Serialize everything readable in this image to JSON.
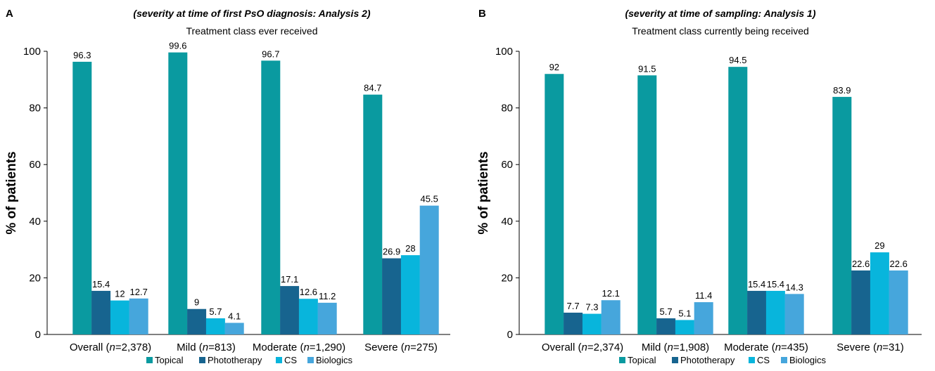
{
  "colors": {
    "Topical": "#0a9aa0",
    "Phototherapy": "#17648f",
    "CS": "#08b5dc",
    "Biologics": "#46a6dc"
  },
  "chart_data": [
    {
      "type": "bar",
      "panel": "A",
      "title": "(severity at time of first PsO diagnosis: Analysis 2)",
      "subtitle": "Treatment class ever received",
      "ylabel": "% of patients",
      "xlabel": "",
      "ylim": [
        0,
        100
      ],
      "yticks": [
        0,
        20,
        40,
        60,
        80,
        100
      ],
      "grid": false,
      "legend_position": "bottom",
      "categories": [
        {
          "pre": "Overall (",
          "n": "n",
          "post": "=2,378)"
        },
        {
          "pre": "Mild (",
          "n": "n",
          "post": "=813)"
        },
        {
          "pre": "Moderate (",
          "n": "n",
          "post": "=1,290)"
        },
        {
          "pre": "Severe (",
          "n": "n",
          "post": "=275)"
        }
      ],
      "series": [
        {
          "name": "Topical",
          "values": [
            96.3,
            99.6,
            96.7,
            84.7
          ]
        },
        {
          "name": "Phototherapy",
          "values": [
            15.4,
            9,
            17.1,
            26.9
          ]
        },
        {
          "name": "CS",
          "values": [
            12,
            5.7,
            12.6,
            28
          ]
        },
        {
          "name": "Biologics",
          "values": [
            12.7,
            4.1,
            11.2,
            45.5
          ]
        }
      ]
    },
    {
      "type": "bar",
      "panel": "B",
      "title": "(severity at time of sampling: Analysis 1)",
      "subtitle": "Treatment class currently being received",
      "ylabel": "% of patients",
      "xlabel": "",
      "ylim": [
        0,
        100
      ],
      "yticks": [
        0,
        20,
        40,
        60,
        80,
        100
      ],
      "grid": false,
      "legend_position": "bottom",
      "categories": [
        {
          "pre": "Overall (",
          "n": "n",
          "post": "=2,374)"
        },
        {
          "pre": "Mild (",
          "n": "n",
          "post": "=1,908)"
        },
        {
          "pre": "Moderate (",
          "n": "n",
          "post": "=435)"
        },
        {
          "pre": "Severe (",
          "n": "n",
          "post": "=31)"
        }
      ],
      "series": [
        {
          "name": "Topical",
          "values": [
            92,
            91.5,
            94.5,
            83.9
          ]
        },
        {
          "name": "Phototherapy",
          "values": [
            7.7,
            5.7,
            15.4,
            22.6
          ]
        },
        {
          "name": "CS",
          "values": [
            7.3,
            5.1,
            15.4,
            29
          ]
        },
        {
          "name": "Biologics",
          "values": [
            12.1,
            11.4,
            14.3,
            22.6
          ]
        }
      ]
    }
  ]
}
